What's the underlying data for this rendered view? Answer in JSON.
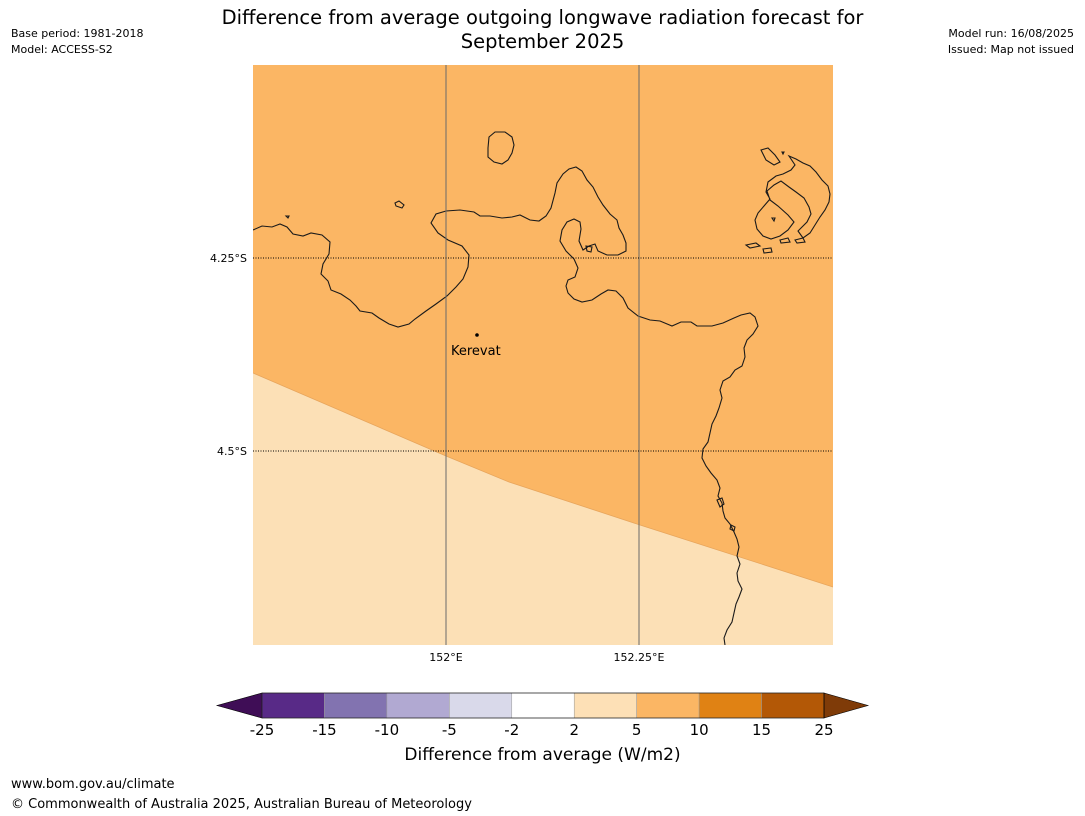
{
  "header": {
    "title_line1": "Difference from average outgoing longwave radiation forecast for",
    "title_line2": "September 2025",
    "base_period": "Base period: 1981-2018",
    "model": "Model: ACCESS-S2",
    "model_run": "Model run: 16/08/2025",
    "issued": "Issued: Map not issued"
  },
  "map": {
    "latitude_labels": [
      "4.25°S",
      "4.5°S"
    ],
    "longitude_labels": [
      "152°E",
      "152.25°E"
    ],
    "place": {
      "name": "Kerevat"
    },
    "fill_colors": {
      "upper_category": "#fbb664",
      "lower_category": "#fce0b6"
    },
    "category_upper": "5 to 10",
    "category_lower": "2 to 5"
  },
  "colorbar": {
    "label": "Difference from average (W/m2)",
    "ticks": [
      "-25",
      "-15",
      "-10",
      "-5",
      "-2",
      "2",
      "5",
      "10",
      "15",
      "25"
    ],
    "colors": [
      "#3f0d56",
      "#582a87",
      "#8273b0",
      "#b1a9d2",
      "#d9d9ea",
      "#ffffff",
      "#fde0b6",
      "#fbb664",
      "#e08214",
      "#b35806",
      "#7f3b08"
    ]
  },
  "footer": {
    "url": "www.bom.gov.au/climate",
    "copyright": "© Commonwealth of Australia 2025, Australian Bureau of Meteorology"
  }
}
